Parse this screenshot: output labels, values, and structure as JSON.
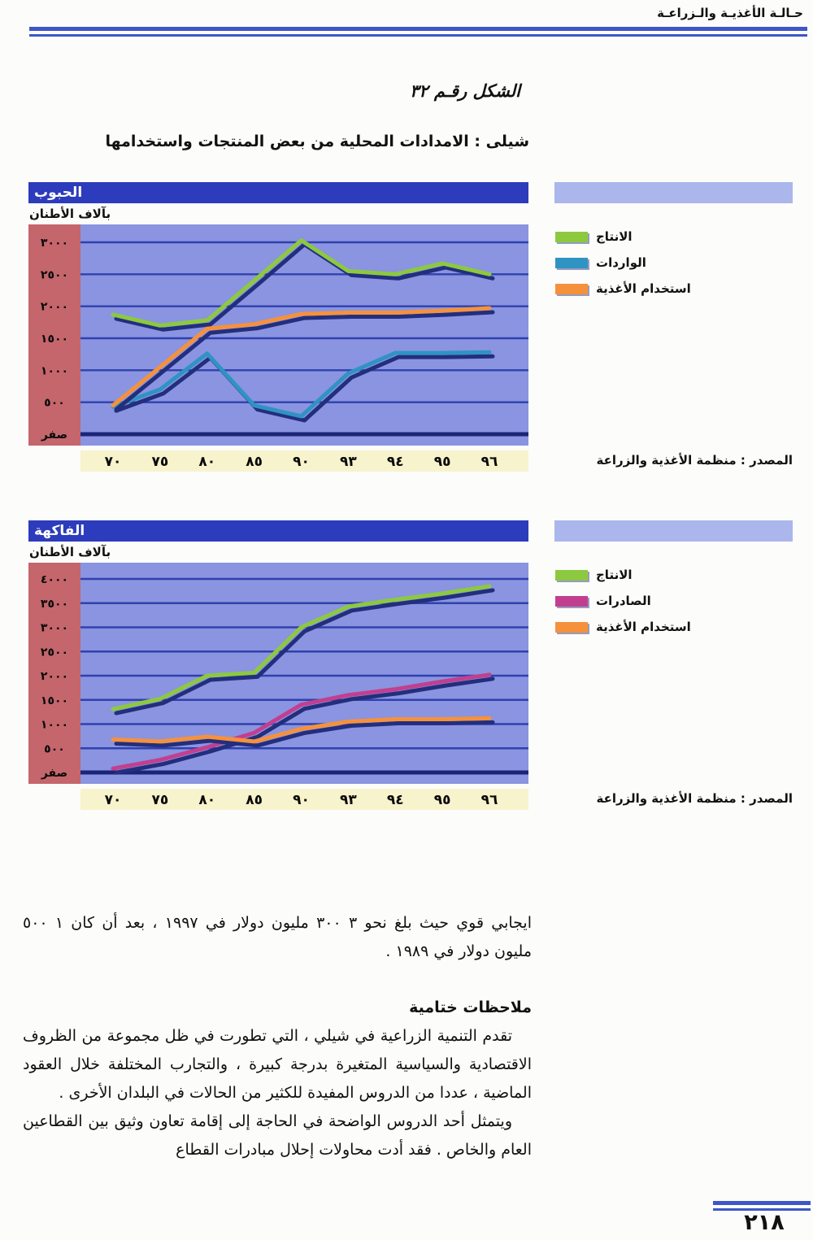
{
  "page": {
    "header_title": "حـالـة الأغذيـة والـزراعـة",
    "figure_number": "الشكل رقـم ٣٢",
    "figure_title": "شيلى : الامدادات المحلية من بعض المنتجات واستخدامها",
    "page_number": "٢١٨"
  },
  "chart_data": [
    {
      "type": "line",
      "title": "الحبوب",
      "units_label": "بآلاف الأطنان",
      "source": "المصدر : منظمة الأغذية والزراعة",
      "categories": [
        "٧٠",
        "٧٥",
        "٨٠",
        "٨٥",
        "٩٠",
        "٩٣",
        "٩٤",
        "٩٥",
        "٩٦"
      ],
      "categories_western": [
        1970,
        1975,
        1980,
        1985,
        1990,
        1993,
        1994,
        1995,
        1996
      ],
      "ylim": [
        0,
        3000
      ],
      "ytick_step": 500,
      "yticks_labels": [
        "٣٠٠٠",
        "٢٥٠٠",
        "٢٠٠٠",
        "١٥٠٠",
        "١٠٠٠",
        "٥٠٠",
        "صفر"
      ],
      "grid": true,
      "legend_position": "right",
      "series": [
        {
          "name": "الانتاج",
          "color": "#8cc93f",
          "values": [
            1870,
            1700,
            1780,
            2400,
            3030,
            2550,
            2500,
            2670,
            2500
          ]
        },
        {
          "name": "الواردات",
          "color": "#2f93c3",
          "values": [
            430,
            700,
            1260,
            450,
            280,
            950,
            1270,
            1270,
            1280
          ]
        },
        {
          "name": "استخدام الأغذية",
          "color": "#f6913b",
          "values": [
            450,
            1050,
            1650,
            1720,
            1880,
            1900,
            1900,
            1930,
            1970
          ]
        }
      ]
    },
    {
      "type": "line",
      "title": "الفاكهة",
      "units_label": "بآلاف الأطنان",
      "source": "المصدر : منظمة الأغذية والزراعة",
      "categories": [
        "٧٠",
        "٧٥",
        "٨٠",
        "٨٥",
        "٩٠",
        "٩٣",
        "٩٤",
        "٩٥",
        "٩٦"
      ],
      "categories_western": [
        1970,
        1975,
        1980,
        1985,
        1990,
        1993,
        1994,
        1995,
        1996
      ],
      "ylim": [
        0,
        4000
      ],
      "ytick_step": 500,
      "yticks_labels": [
        "٤٠٠٠",
        "٣٥٠٠",
        "٣٠٠٠",
        "٢٥٠٠",
        "٢٠٠٠",
        "١٥٠٠",
        "١٠٠٠",
        "٥٠٠",
        "صفر"
      ],
      "grid": true,
      "legend_position": "right",
      "series": [
        {
          "name": "الانتاج",
          "color": "#8cc93f",
          "values": [
            1310,
            1520,
            2000,
            2060,
            3000,
            3430,
            3570,
            3700,
            3850
          ]
        },
        {
          "name": "الصادرات",
          "color": "#c23f8f",
          "values": [
            80,
            260,
            520,
            820,
            1400,
            1600,
            1720,
            1880,
            2020
          ]
        },
        {
          "name": "استخدام الأغذية",
          "color": "#f6913b",
          "values": [
            680,
            640,
            740,
            640,
            900,
            1050,
            1100,
            1100,
            1120
          ]
        }
      ]
    }
  ],
  "body": {
    "paragraph_1": "ايجابي قوي حيث بلغ نحو ٣ ٣٠٠ مليون دولار في ١٩٩٧ ، بعد أن كان ١ ٥٠٠ مليون دولار في ١٩٨٩ .",
    "heading": "ملاحظات ختامية",
    "paragraph_2": "تقدم التنمية الزراعية في شيلي ، التي تطورت في ظل مجموعة من الظروف الاقتصادية والسياسية المتغيرة بدرجة كبيرة ، والتجارب المختلفة خلال العقود الماضية ، عددا من الدروس المفيدة للكثير من الحالات في البلدان الأخرى .",
    "paragraph_3": "ويتمثل أحد الدروس الواضحة في الحاجة إلى إقامة تعاون وثيق بين القطاعين العام والخاص . فقد أدت محاولات إحلال مبادرات القطاع"
  },
  "colors": {
    "plot_background": "#8a94e0",
    "ylabel_strip": "#c4666c",
    "grid_line": "#2f41ad",
    "zero_line": "#1a2578",
    "line_shadow": "#232e7d",
    "title_bar": "#2c3cbc",
    "legend_bar": "#aab6ec",
    "xaxis_strip": "#f7f3cc",
    "rule_blue": "#3d57c8"
  }
}
